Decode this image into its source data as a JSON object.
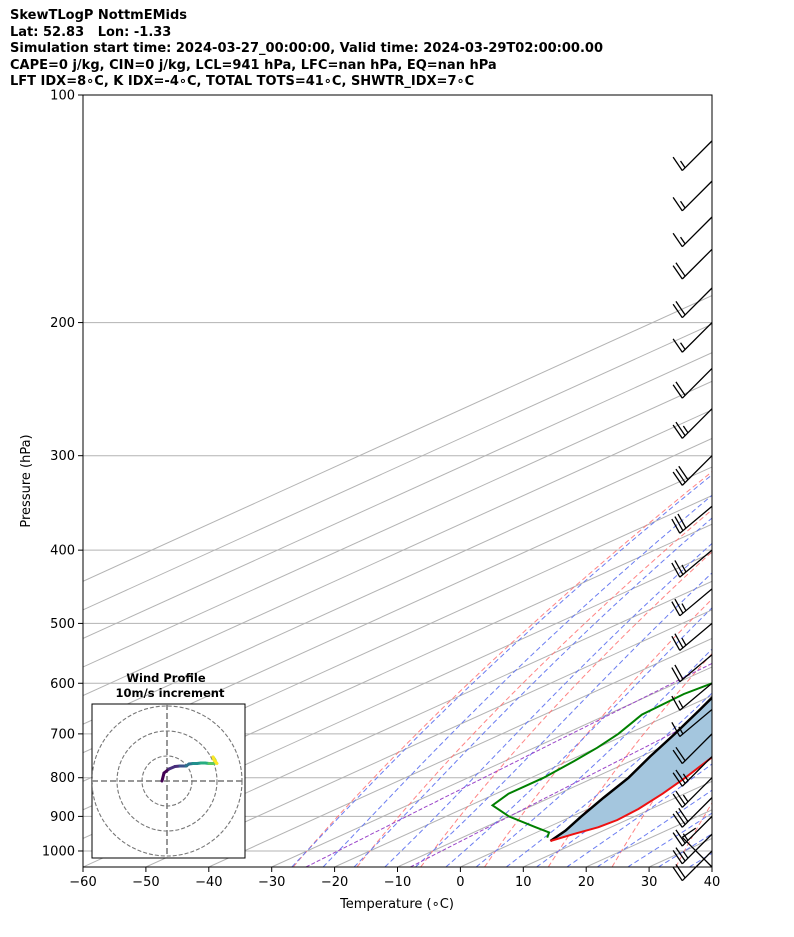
{
  "title_lines": [
    "SkewTLogP NottmEMids",
    "Lat: 52.83   Lon: -1.33",
    "Simulation start time: 2024-03-27_00:00:00, Valid time: 2024-03-29T02:00:00.00",
    "CAPE=0 j/kg, CIN=0 j/kg, LCL=941 hPa, LFC=nan hPa, EQ=nan hPa",
    "LFT IDX=8∘C, K IDX=-4∘C, TOTAL TOTS=41∘C, SHWTR_IDX=7∘C"
  ],
  "inset": {
    "title": "Wind Profile",
    "subtitle": "10m/s increment"
  },
  "chart_data": {
    "type": "skewt",
    "xlabel": "Temperature (∘C)",
    "ylabel": "Pressure (hPa)",
    "xlim": [
      -60,
      40
    ],
    "ylim": [
      1050,
      100
    ],
    "x_ticks": [
      -60,
      -50,
      -40,
      -30,
      -20,
      -10,
      0,
      10,
      20,
      30,
      40
    ],
    "y_ticks": [
      1000,
      900,
      800,
      700,
      600,
      500,
      400,
      300,
      200,
      100
    ],
    "y_scale": "log",
    "grid": true,
    "colors": {
      "temperature": "#ee1111",
      "dewpoint": "#008000",
      "parcel": "#000000",
      "fill": "#a4c6de",
      "dry_adiabat": "#ff6f6f",
      "moist_adiabat": "#5b6ff0",
      "mixing_ratio": "#9b46c9"
    },
    "series": [
      {
        "name": "temperature",
        "points": [
          [
            5.2,
            970
          ],
          [
            6.5,
            950
          ],
          [
            8.0,
            930
          ],
          [
            8.5,
            910
          ],
          [
            8.0,
            880
          ],
          [
            6.5,
            840
          ],
          [
            4.5,
            800
          ],
          [
            1.5,
            750
          ],
          [
            -2.0,
            700
          ],
          [
            -6.0,
            650
          ],
          [
            -9.0,
            600
          ],
          [
            -11.5,
            550
          ],
          [
            -13.5,
            500
          ],
          [
            -16.0,
            450
          ],
          [
            -18.0,
            400
          ],
          [
            -20.5,
            370
          ],
          [
            -23.0,
            345
          ],
          [
            -25.0,
            330
          ],
          [
            -25.5,
            320
          ],
          [
            -25.0,
            310
          ],
          [
            -26.0,
            300
          ],
          [
            -28.5,
            280
          ],
          [
            -32.0,
            260
          ],
          [
            -37.0,
            240
          ],
          [
            -41.0,
            220
          ],
          [
            -44.0,
            200
          ],
          [
            -46.0,
            180
          ],
          [
            -49.0,
            160
          ],
          [
            -50.5,
            150
          ],
          [
            -52.0,
            140
          ],
          [
            -52.5,
            130
          ],
          [
            -53.5,
            120
          ],
          [
            -54.0,
            110
          ],
          [
            -55.0,
            100
          ]
        ]
      },
      {
        "name": "dewpoint",
        "points": [
          [
            3.5,
            960
          ],
          [
            2.0,
            945
          ],
          [
            -2.0,
            930
          ],
          [
            -10.0,
            900
          ],
          [
            -16.5,
            870
          ],
          [
            -18.0,
            840
          ],
          [
            -18.0,
            800
          ],
          [
            -19.0,
            760
          ],
          [
            -20.0,
            730
          ],
          [
            -21.5,
            700
          ],
          [
            -24.5,
            660
          ],
          [
            -25.0,
            620
          ],
          [
            -23.5,
            580
          ],
          [
            -23.0,
            540
          ],
          [
            -26.5,
            500
          ],
          [
            -31.0,
            470
          ],
          [
            -33.0,
            440
          ],
          [
            -32.5,
            420
          ],
          [
            -33.0,
            400
          ],
          [
            -36.0,
            360
          ],
          [
            -38.5,
            330
          ],
          [
            -41.5,
            300
          ],
          [
            -42.0,
            290
          ],
          [
            -42.0,
            270
          ],
          [
            -43.5,
            240
          ],
          [
            -44.5,
            220
          ],
          [
            -47.0,
            200
          ],
          [
            -50.0,
            180
          ],
          [
            -52.0,
            160
          ],
          [
            -56.5,
            140
          ],
          [
            -59.5,
            120
          ],
          [
            -63.5,
            100
          ]
        ]
      },
      {
        "name": "parcel",
        "points": [
          [
            5.2,
            970
          ],
          [
            4.0,
            940
          ],
          [
            1.5,
            900
          ],
          [
            -1.5,
            850
          ],
          [
            -4.5,
            800
          ],
          [
            -8.5,
            750
          ],
          [
            -12.5,
            700
          ],
          [
            -17.0,
            650
          ],
          [
            -22.0,
            600
          ],
          [
            -27.5,
            550
          ],
          [
            -33.5,
            500
          ],
          [
            -40.5,
            450
          ],
          [
            -48.5,
            400
          ],
          [
            -58.0,
            350
          ],
          [
            -69.0,
            300
          ],
          [
            -82.0,
            250
          ],
          [
            -97.0,
            200
          ],
          [
            -114.0,
            150
          ],
          [
            -135.0,
            100
          ]
        ]
      }
    ],
    "wind_barbs": [
      {
        "p": 1050,
        "speed_kt": 10,
        "dir": 315
      },
      {
        "p": 1000,
        "speed_kt": 20,
        "dir": 225
      },
      {
        "p": 950,
        "speed_kt": 25,
        "dir": 225
      },
      {
        "p": 900,
        "speed_kt": 25,
        "dir": 225
      },
      {
        "p": 850,
        "speed_kt": 30,
        "dir": 225
      },
      {
        "p": 800,
        "speed_kt": 25,
        "dir": 225
      },
      {
        "p": 750,
        "speed_kt": 25,
        "dir": 225
      },
      {
        "p": 700,
        "speed_kt": 20,
        "dir": 225
      },
      {
        "p": 650,
        "speed_kt": 15,
        "dir": 230
      },
      {
        "p": 600,
        "speed_kt": 15,
        "dir": 230
      },
      {
        "p": 550,
        "speed_kt": 20,
        "dir": 230
      },
      {
        "p": 500,
        "speed_kt": 25,
        "dir": 230
      },
      {
        "p": 450,
        "speed_kt": 25,
        "dir": 230
      },
      {
        "p": 400,
        "speed_kt": 25,
        "dir": 230
      },
      {
        "p": 350,
        "speed_kt": 30,
        "dir": 230
      },
      {
        "p": 300,
        "speed_kt": 30,
        "dir": 225
      },
      {
        "p": 260,
        "speed_kt": 25,
        "dir": 225
      },
      {
        "p": 230,
        "speed_kt": 20,
        "dir": 225
      },
      {
        "p": 200,
        "speed_kt": 15,
        "dir": 225
      },
      {
        "p": 180,
        "speed_kt": 20,
        "dir": 225
      },
      {
        "p": 160,
        "speed_kt": 20,
        "dir": 225
      },
      {
        "p": 145,
        "speed_kt": 15,
        "dir": 225
      },
      {
        "p": 130,
        "speed_kt": 15,
        "dir": 225
      },
      {
        "p": 115,
        "speed_kt": 15,
        "dir": 225
      }
    ],
    "hodograph": {
      "rings": 3,
      "points": [
        [
          -0.5,
          -1.2
        ],
        [
          -0.3,
          -0.4
        ],
        [
          0.2,
          0.0
        ],
        [
          0.8,
          0.25
        ],
        [
          1.3,
          0.3
        ],
        [
          1.6,
          0.3
        ],
        [
          1.9,
          0.3
        ],
        [
          2.2,
          0.5
        ],
        [
          2.6,
          0.55
        ],
        [
          3.0,
          0.55
        ],
        [
          3.4,
          0.6
        ],
        [
          3.8,
          0.6
        ],
        [
          4.2,
          0.55
        ],
        [
          4.6,
          0.55
        ],
        [
          4.9,
          0.6
        ],
        [
          4.8,
          0.9
        ],
        [
          4.6,
          1.2
        ],
        [
          4.7,
          0.9
        ],
        [
          5.0,
          0.55
        ]
      ]
    }
  }
}
